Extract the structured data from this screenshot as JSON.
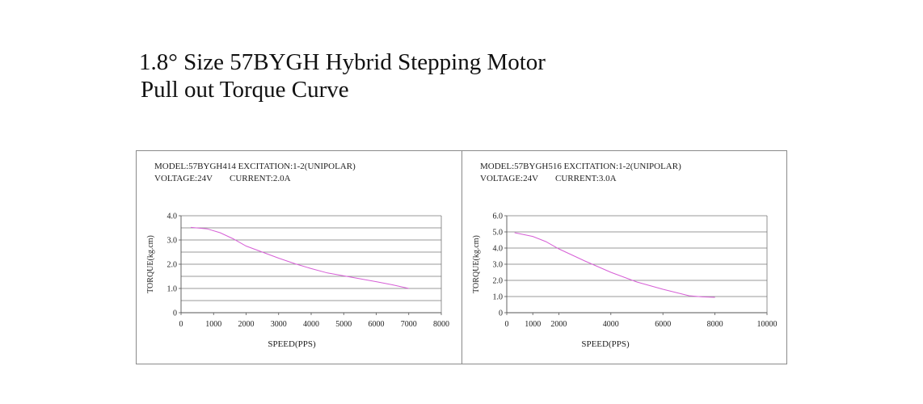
{
  "page": {
    "title_line1": "1.8° Size 57BYGH Hybrid Stepping Motor",
    "title_line2": "Pull out Torque Curve"
  },
  "chart_data": [
    {
      "type": "line",
      "header_line1": "MODEL:57BYGH414  EXCITATION:1-2(UNIPOLAR)",
      "header_line2_a": "VOLTAGE:24V",
      "header_line2_b": "CURRENT:2.0A",
      "xlabel": "SPEED(PPS)",
      "ylabel": "TORQUE(kg.cm)",
      "xlim": [
        0,
        8000
      ],
      "ylim": [
        0,
        4
      ],
      "x_ticks": [
        0,
        1000,
        2000,
        3000,
        4000,
        5000,
        6000,
        7000,
        8000
      ],
      "x_tick_labels": [
        "0",
        "1000",
        "2000",
        "3000",
        "4000",
        "5000",
        "6000",
        "7000",
        "8000"
      ],
      "y_ticks": [
        0,
        1,
        2,
        3,
        4
      ],
      "y_tick_labels": [
        "0",
        "1.0",
        "2.0",
        "3.0",
        "4.0"
      ],
      "h_gridlines": [
        0.5,
        1.0,
        1.5,
        2.0,
        2.5,
        3.0,
        3.5,
        4.0
      ],
      "line_color": "#d65fd6",
      "grid": true,
      "series": [
        {
          "x": [
            300,
            800,
            1200,
            1600,
            2000,
            2500,
            3000,
            3500,
            4000,
            4500,
            5000,
            5500,
            6000,
            6500,
            7000
          ],
          "y": [
            3.52,
            3.46,
            3.3,
            3.05,
            2.75,
            2.5,
            2.25,
            2.02,
            1.82,
            1.64,
            1.52,
            1.4,
            1.28,
            1.15,
            1.0
          ]
        }
      ]
    },
    {
      "type": "line",
      "header_line1": "MODEL:57BYGH516  EXCITATION:1-2(UNIPOLAR)",
      "header_line2_a": "VOLTAGE:24V",
      "header_line2_b": "CURRENT:3.0A",
      "xlabel": "SPEED(PPS)",
      "ylabel": "TORQUE(kg.cm)",
      "xlim": [
        0,
        10000
      ],
      "ylim": [
        0,
        6
      ],
      "x_ticks": [
        0,
        1000,
        2000,
        4000,
        6000,
        8000,
        10000
      ],
      "x_tick_labels": [
        "0",
        "1000",
        "2000",
        "4000",
        "6000",
        "8000",
        "10000"
      ],
      "y_ticks": [
        0,
        1,
        2,
        3,
        4,
        5,
        6
      ],
      "y_tick_labels": [
        "0",
        "1.0",
        "2.0",
        "3.0",
        "4.0",
        "5.0",
        "6.0"
      ],
      "h_gridlines": [
        1,
        2,
        3,
        4,
        5,
        6
      ],
      "line_color": "#d65fd6",
      "grid": true,
      "series": [
        {
          "x": [
            300,
            1000,
            1500,
            2000,
            3000,
            4000,
            5000,
            6000,
            7000,
            7500,
            8000
          ],
          "y": [
            4.95,
            4.72,
            4.4,
            3.95,
            3.2,
            2.5,
            1.9,
            1.45,
            1.05,
            0.98,
            0.95
          ]
        }
      ]
    }
  ]
}
